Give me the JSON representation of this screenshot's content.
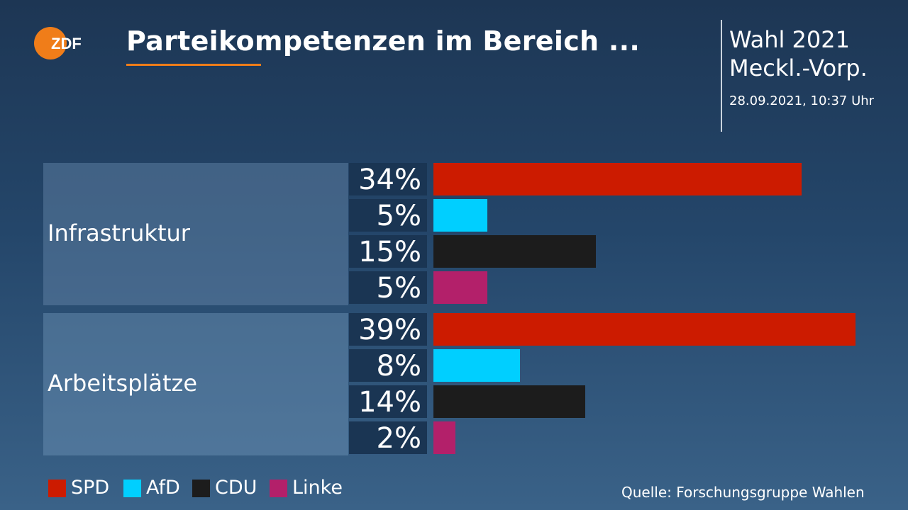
{
  "header": {
    "logo_text": "ZDF",
    "title": "Parteikompetenzen im Bereich ...",
    "election_line1": "Wahl 2021",
    "election_line2": "Meckl.-Vorp.",
    "timestamp": "28.09.2021, 10:37 Uhr"
  },
  "colors": {
    "accent": "#f07d19",
    "SPD": "#cc1b00",
    "AfD": "#00cfff",
    "CDU": "#1c1c1c",
    "Linke": "#b3206a"
  },
  "chart_data": {
    "type": "bar",
    "orientation": "horizontal",
    "categories": [
      "Infrastruktur",
      "Arbeitsplätze"
    ],
    "series": [
      {
        "name": "SPD",
        "values": [
          34,
          39
        ],
        "labels": [
          "34%",
          "39%"
        ]
      },
      {
        "name": "AfD",
        "values": [
          5,
          8
        ],
        "labels": [
          "5%",
          "8%"
        ]
      },
      {
        "name": "CDU",
        "values": [
          15,
          14
        ],
        "labels": [
          "15%",
          "14%"
        ]
      },
      {
        "name": "Linke",
        "values": [
          5,
          2
        ],
        "labels": [
          "5%",
          "2%"
        ]
      }
    ],
    "unit": "%",
    "xlim": [
      0,
      40
    ],
    "legend": "bottom-left"
  },
  "source": "Quelle: Forschungsgruppe Wahlen"
}
